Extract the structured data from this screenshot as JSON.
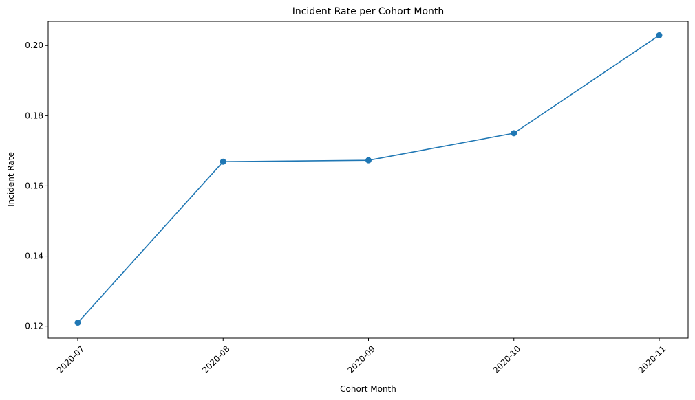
{
  "chart_data": {
    "type": "line",
    "title": "Incident Rate per Cohort Month",
    "xlabel": "Cohort Month",
    "ylabel": "Incident Rate",
    "categories": [
      "2020-07",
      "2020-08",
      "2020-09",
      "2020-10",
      "2020-11"
    ],
    "series": [
      {
        "values": [
          0.121,
          0.1669,
          0.1673,
          0.175,
          0.2029
        ],
        "color": "#1f77b4"
      }
    ],
    "yticks": [
      "0.12",
      "0.14",
      "0.16",
      "0.18",
      "0.20"
    ],
    "ytick_values": [
      0.12,
      0.14,
      0.16,
      0.18,
      0.2
    ],
    "ylim": [
      0.1166,
      0.2069
    ],
    "grid": false,
    "legend": "none",
    "marker": "circle",
    "x_tick_rotation_deg": 45
  }
}
